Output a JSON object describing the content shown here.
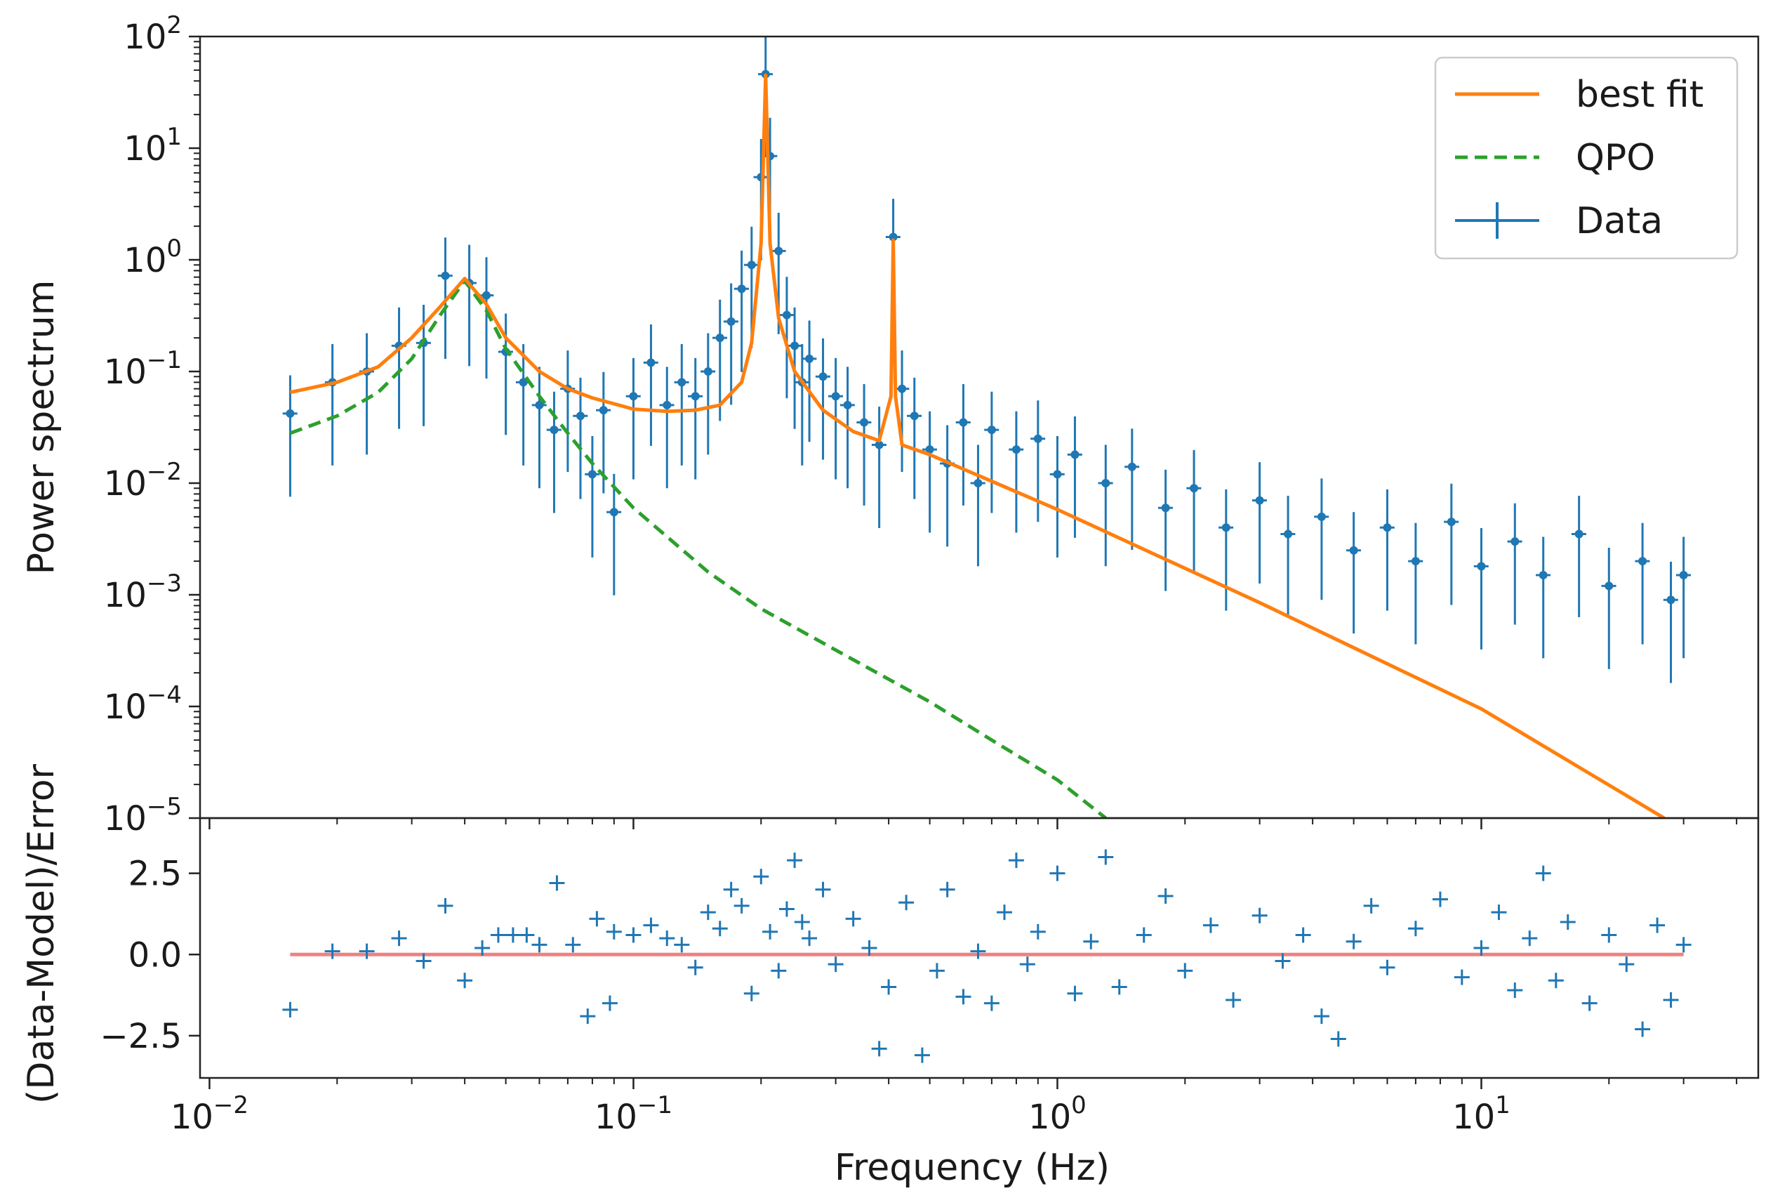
{
  "chart_data": [
    {
      "panel": "top",
      "type": "line",
      "xscale": "log",
      "yscale": "log",
      "xlim": [
        0.0095,
        45
      ],
      "ylim": [
        1e-05,
        100
      ],
      "xlabel": "",
      "ylabel": "Power spectrum",
      "grid": false,
      "xticks": [
        {
          "value": 0.01,
          "base": "10",
          "exp": "−2"
        },
        {
          "value": 0.1,
          "base": "10",
          "exp": "−1"
        },
        {
          "value": 1,
          "base": "10",
          "exp": "0"
        },
        {
          "value": 10,
          "base": "10",
          "exp": "1"
        }
      ],
      "yticks": [
        {
          "value": 100,
          "base": "10",
          "exp": "2"
        },
        {
          "value": 10,
          "base": "10",
          "exp": "1"
        },
        {
          "value": 1,
          "base": "10",
          "exp": "0"
        },
        {
          "value": 0.1,
          "base": "10",
          "exp": "−1"
        },
        {
          "value": 0.01,
          "base": "10",
          "exp": "−2"
        },
        {
          "value": 0.001,
          "base": "10",
          "exp": "−3"
        },
        {
          "value": 0.0001,
          "base": "10",
          "exp": "−4"
        },
        {
          "value": 1e-05,
          "base": "10",
          "exp": "−5"
        }
      ],
      "legend": {
        "position": "top-right",
        "entries": [
          {
            "label": "best fit",
            "style": "solid",
            "color": "#ff7f0e"
          },
          {
            "label": "QPO",
            "style": "dashed",
            "color": "#2ca02c"
          },
          {
            "label": "Data",
            "style": "errorbar",
            "color": "#1f77b4"
          }
        ]
      },
      "series": [
        {
          "name": "best fit",
          "color": "#ff7f0e",
          "x": [
            0.0155,
            0.02,
            0.025,
            0.03,
            0.035,
            0.04,
            0.045,
            0.05,
            0.06,
            0.07,
            0.08,
            0.1,
            0.12,
            0.14,
            0.16,
            0.18,
            0.19,
            0.2,
            0.205,
            0.21,
            0.22,
            0.24,
            0.28,
            0.33,
            0.38,
            0.405,
            0.41,
            0.415,
            0.43,
            0.5,
            1,
            3,
            10,
            27
          ],
          "y": [
            0.065,
            0.08,
            0.11,
            0.2,
            0.38,
            0.68,
            0.4,
            0.2,
            0.1,
            0.07,
            0.058,
            0.046,
            0.044,
            0.045,
            0.05,
            0.08,
            0.18,
            1.4,
            45,
            1.4,
            0.3,
            0.1,
            0.045,
            0.029,
            0.024,
            0.06,
            1.5,
            0.06,
            0.022,
            0.018,
            0.0058,
            0.00085,
            9.5e-05,
            1e-05
          ]
        },
        {
          "name": "QPO",
          "color": "#2ca02c",
          "x": [
            0.0155,
            0.02,
            0.025,
            0.03,
            0.035,
            0.04,
            0.045,
            0.05,
            0.06,
            0.07,
            0.08,
            0.1,
            0.15,
            0.2,
            0.3,
            0.5,
            0.7,
            1.0,
            1.3
          ],
          "y": [
            0.028,
            0.04,
            0.065,
            0.13,
            0.32,
            0.65,
            0.35,
            0.16,
            0.06,
            0.028,
            0.015,
            0.006,
            0.0016,
            0.00075,
            0.00032,
            0.00011,
            5e-05,
            2.2e-05,
            1e-05
          ]
        },
        {
          "name": "Data",
          "color": "#1f77b4",
          "x": [
            0.0155,
            0.0195,
            0.0235,
            0.028,
            0.032,
            0.036,
            0.041,
            0.045,
            0.05,
            0.055,
            0.06,
            0.065,
            0.07,
            0.075,
            0.08,
            0.085,
            0.09,
            0.1,
            0.11,
            0.12,
            0.13,
            0.14,
            0.15,
            0.16,
            0.17,
            0.18,
            0.19,
            0.2,
            0.205,
            0.21,
            0.22,
            0.23,
            0.24,
            0.25,
            0.26,
            0.28,
            0.3,
            0.32,
            0.35,
            0.38,
            0.41,
            0.43,
            0.46,
            0.5,
            0.55,
            0.6,
            0.65,
            0.7,
            0.8,
            0.9,
            1.0,
            1.1,
            1.3,
            1.5,
            1.8,
            2.1,
            2.5,
            3.0,
            3.5,
            4.2,
            5.0,
            6.0,
            7.0,
            8.5,
            10,
            12,
            14,
            17,
            20,
            24,
            28,
            30
          ],
          "y": [
            0.042,
            0.08,
            0.1,
            0.17,
            0.18,
            0.72,
            0.62,
            0.48,
            0.15,
            0.08,
            0.05,
            0.03,
            0.07,
            0.04,
            0.012,
            0.045,
            0.0055,
            0.06,
            0.12,
            0.05,
            0.08,
            0.06,
            0.1,
            0.2,
            0.28,
            0.55,
            0.9,
            5.5,
            46,
            8.5,
            1.2,
            0.32,
            0.17,
            0.08,
            0.13,
            0.09,
            0.06,
            0.05,
            0.035,
            0.022,
            1.6,
            0.07,
            0.04,
            0.02,
            0.015,
            0.035,
            0.01,
            0.03,
            0.02,
            0.025,
            0.012,
            0.018,
            0.01,
            0.014,
            0.006,
            0.009,
            0.004,
            0.007,
            0.0035,
            0.005,
            0.0025,
            0.004,
            0.002,
            0.0045,
            0.0018,
            0.003,
            0.0015,
            0.0035,
            0.0012,
            0.002,
            0.0009,
            0.0015
          ]
        }
      ]
    },
    {
      "panel": "bottom",
      "type": "scatter",
      "xscale": "log",
      "xlim": [
        0.0095,
        45
      ],
      "ylim": [
        -3.8,
        4.2
      ],
      "xlabel": "Frequency (Hz)",
      "ylabel": "(Data-Model)/Error",
      "yticks": [
        "2.5",
        "0.0",
        "−2.5"
      ],
      "ytick_values": [
        2.5,
        0.0,
        -2.5
      ],
      "reference_line": {
        "y": 0,
        "color": "#f08080",
        "x": [
          0.0155,
          30
        ]
      },
      "series": [
        {
          "name": "residuals",
          "color": "#1f77b4",
          "x": [
            0.0155,
            0.0195,
            0.0235,
            0.028,
            0.032,
            0.036,
            0.04,
            0.044,
            0.048,
            0.052,
            0.056,
            0.06,
            0.066,
            0.072,
            0.078,
            0.082,
            0.088,
            0.09,
            0.1,
            0.11,
            0.12,
            0.13,
            0.14,
            0.15,
            0.16,
            0.17,
            0.18,
            0.19,
            0.2,
            0.21,
            0.22,
            0.23,
            0.24,
            0.25,
            0.26,
            0.28,
            0.3,
            0.33,
            0.36,
            0.38,
            0.4,
            0.44,
            0.48,
            0.52,
            0.55,
            0.6,
            0.65,
            0.7,
            0.75,
            0.8,
            0.85,
            0.9,
            1.0,
            1.1,
            1.2,
            1.3,
            1.4,
            1.6,
            1.8,
            2.0,
            2.3,
            2.6,
            3.0,
            3.4,
            3.8,
            4.2,
            4.6,
            5.0,
            5.5,
            6.0,
            7.0,
            8.0,
            9.0,
            10,
            11,
            12,
            13,
            14,
            15,
            16,
            18,
            20,
            22,
            24,
            26,
            28,
            30
          ],
          "y": [
            -1.7,
            0.1,
            0.1,
            0.5,
            -0.2,
            1.5,
            -0.8,
            0.2,
            0.6,
            0.6,
            0.6,
            0.3,
            2.2,
            0.3,
            -1.9,
            1.1,
            -1.5,
            0.7,
            0.6,
            0.9,
            0.5,
            0.3,
            -0.4,
            1.3,
            0.8,
            2.0,
            1.5,
            -1.2,
            2.4,
            0.7,
            -0.5,
            1.4,
            2.9,
            1.0,
            0.5,
            2.0,
            -0.3,
            1.1,
            0.2,
            -2.9,
            -1.0,
            1.6,
            -3.1,
            -0.5,
            2.0,
            -1.3,
            0.1,
            -1.5,
            1.3,
            2.9,
            -0.3,
            0.7,
            2.5,
            -1.2,
            0.4,
            3.0,
            -1.0,
            0.6,
            1.8,
            -0.5,
            0.9,
            -1.4,
            1.2,
            -0.2,
            0.6,
            -1.9,
            -2.6,
            0.4,
            1.5,
            -0.4,
            0.8,
            1.7,
            -0.7,
            0.2,
            1.3,
            -1.1,
            0.5,
            2.5,
            -0.8,
            1.0,
            -1.5,
            0.6,
            -0.3,
            -2.3,
            0.9,
            -1.4,
            0.3
          ]
        }
      ]
    }
  ]
}
